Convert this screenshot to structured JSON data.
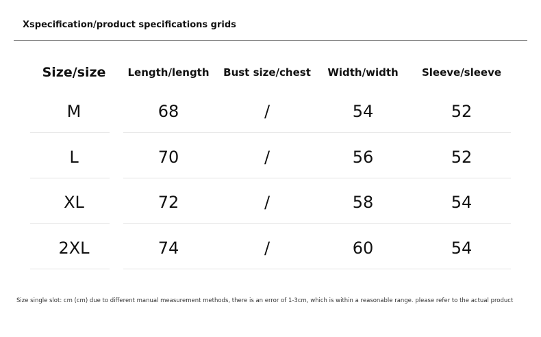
{
  "header": {
    "title": "Xspecification/product specifications grids"
  },
  "table": {
    "columns": [
      "Size/size",
      "Length/length",
      "Bust size/chest",
      "Width/width",
      "Sleeve/sleeve"
    ],
    "rows": [
      [
        "M",
        68,
        "/",
        54,
        52
      ],
      [
        "L",
        70,
        "/",
        56,
        52
      ],
      [
        "XL",
        72,
        "/",
        58,
        54
      ],
      [
        "2XL",
        74,
        "/",
        60,
        54
      ]
    ]
  },
  "footer": {
    "note": "Size single slot: cm (cm) due to different manual measurement methods, there is an error of 1-3cm, which is within a reasonable range. please refer to the actual product"
  }
}
